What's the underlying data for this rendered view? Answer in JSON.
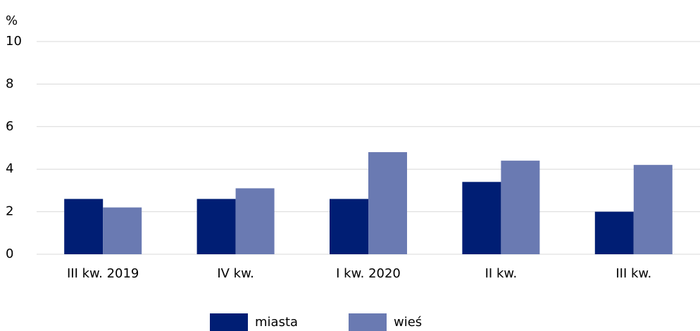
{
  "chart_data": {
    "type": "bar",
    "y_label": "%",
    "categories": [
      "III kw. 2019",
      "IV kw.",
      "I kw. 2020",
      "II kw.",
      "III kw."
    ],
    "series": [
      {
        "name": "miasta",
        "color": "#001e74",
        "values": [
          2.6,
          2.6,
          2.6,
          3.4,
          2.0
        ]
      },
      {
        "name": "wieś",
        "color": "#6a7ab2",
        "values": [
          2.2,
          3.1,
          4.8,
          4.4,
          4.2
        ]
      }
    ],
    "ylim": [
      0,
      10
    ],
    "yticks": [
      0,
      2,
      4,
      6,
      8,
      10
    ],
    "grid": true,
    "legend": "bottom"
  }
}
